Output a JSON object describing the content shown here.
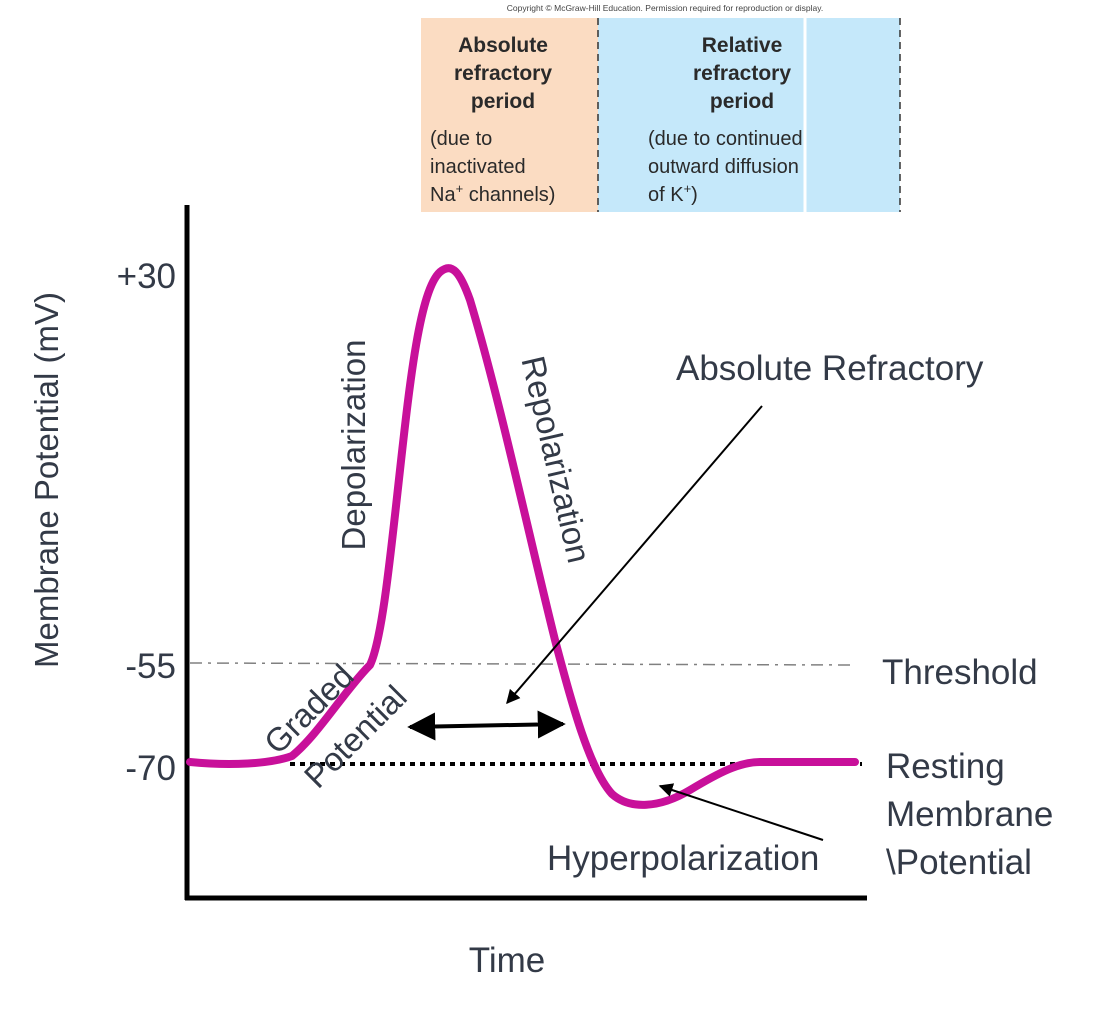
{
  "copyright": "Copyright © McGraw-Hill Education. Permission required for reproduction or display.",
  "refractory_panel": {
    "absolute": {
      "title_lines": [
        "Absolute",
        "refractory",
        "period"
      ],
      "desc_line1": "(due to",
      "desc_line2": "inactivated",
      "desc_line3_a": "Na",
      "desc_line3_sup": "+",
      "desc_line3_b": " channels)",
      "fill": "#fbdcc2"
    },
    "relative": {
      "title_lines": [
        "Relative",
        "refractory",
        "period"
      ],
      "desc_line1": "(due to continued",
      "desc_line2": "outward diffusion",
      "desc_line3_a": "of K",
      "desc_line3_sup": "+",
      "desc_line3_b": ")",
      "fill": "#c5e8fa"
    }
  },
  "axes": {
    "y_label": "Membrane Potential (mV)",
    "x_label": "Time",
    "y_ticks": [
      "+30",
      "-55",
      "-70"
    ]
  },
  "reference_lines": {
    "threshold_label": "Threshold",
    "resting_label_lines": [
      "Resting",
      "Membrane",
      "\\Potential"
    ]
  },
  "phase_labels": {
    "depolarization": "Depolarization",
    "repolarization": "Repolarization",
    "graded_line1": "Graded",
    "graded_line2": "Potential",
    "hyperpolarization": "Hyperpolarization",
    "absolute_refractory": "Absolute Refractory"
  },
  "colors": {
    "trace": "#c8109a",
    "axis": "#000000",
    "text": "#333a47",
    "threshold_line": "#808080"
  }
}
